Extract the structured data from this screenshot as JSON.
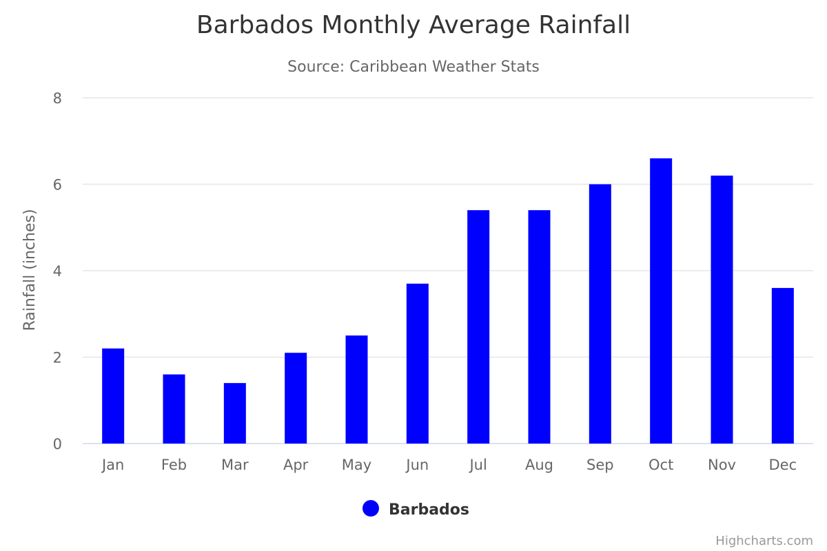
{
  "chart_data": {
    "type": "bar",
    "title": "Barbados Monthly Average Rainfall",
    "subtitle": "Source: Caribbean Weather Stats",
    "xlabel": "",
    "ylabel": "Rainfall (inches)",
    "categories": [
      "Jan",
      "Feb",
      "Mar",
      "Apr",
      "May",
      "Jun",
      "Jul",
      "Aug",
      "Sep",
      "Oct",
      "Nov",
      "Dec"
    ],
    "series": [
      {
        "name": "Barbados",
        "color": "#0000ff",
        "values": [
          2.2,
          1.6,
          1.4,
          2.1,
          2.5,
          3.7,
          5.4,
          5.4,
          6.0,
          6.6,
          6.2,
          3.6
        ]
      }
    ],
    "ylim": [
      0,
      8
    ],
    "yticks": [
      0,
      2,
      4,
      6,
      8
    ],
    "grid": true,
    "legend": "bottom-center"
  },
  "credits": "Highcharts.com"
}
